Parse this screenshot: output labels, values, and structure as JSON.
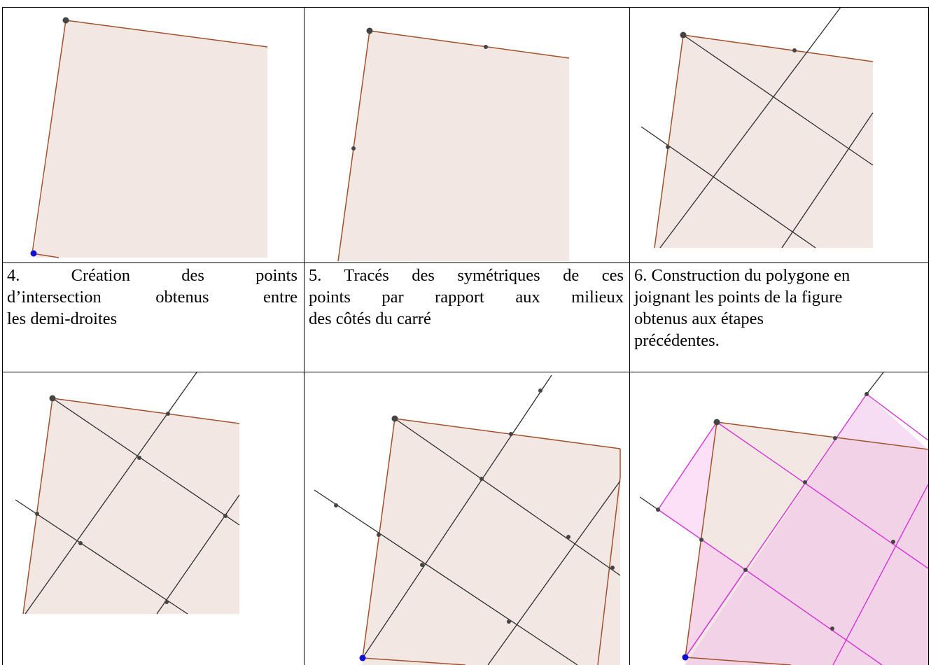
{
  "captions": [
    {
      "line1": "4. Création des points",
      "line2": "d’intersection obtenus entre",
      "line3": "les demi-droites"
    },
    {
      "line1": "5. Tracés des symétriques de ces",
      "line2": "points par rapport aux milieux",
      "line3": "des côtés du carré"
    },
    {
      "line1": "6. Construction du polygone en",
      "line2": "joignant les points de la figure",
      "line3": "obtenus aux étapes",
      "line4": "précédentes."
    }
  ],
  "colors": {
    "fill": "#f3e7e3",
    "edge": "#a0522d",
    "line": "#2e2e2e",
    "vertex": "#444444",
    "blue_point": "#1010d0",
    "magenta": "#d633d6",
    "magenta_fill": "#f4c6ef"
  }
}
